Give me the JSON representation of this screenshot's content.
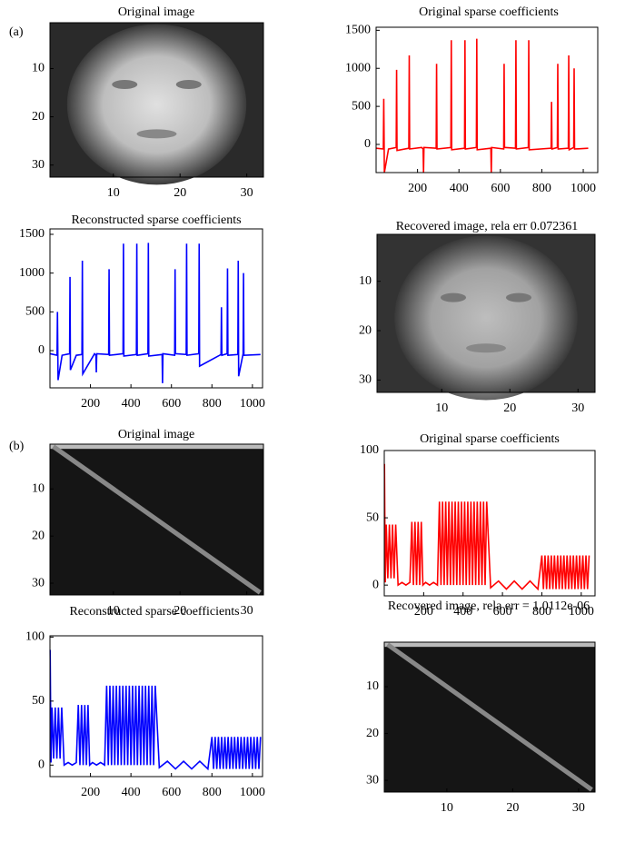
{
  "panel_labels": [
    "(a)",
    "(b)"
  ],
  "chart_data": [
    {
      "type": "image",
      "title": "Original image",
      "xlim": [
        0.5,
        32.5
      ],
      "ylim": [
        0.5,
        32.5
      ],
      "xticks": [
        10,
        20,
        30
      ],
      "yticks": [
        10,
        20,
        30
      ]
    },
    {
      "type": "line",
      "title": "Original sparse coefficients",
      "xlim": [
        0,
        1070
      ],
      "ylim": [
        -370,
        1540
      ],
      "xticks": [
        200,
        400,
        600,
        800,
        1000
      ],
      "yticks": [
        0,
        500,
        1000,
        1500
      ],
      "x": [
        1,
        35,
        37,
        40,
        60,
        97,
        99,
        101,
        158,
        160,
        162,
        220,
        227,
        229,
        231,
        290,
        292,
        294,
        361,
        363,
        365,
        427,
        429,
        431,
        484,
        486,
        488,
        554,
        556,
        558,
        616,
        618,
        620,
        673,
        675,
        677,
        735,
        737,
        739,
        845,
        847,
        849,
        875,
        877,
        879,
        928,
        930,
        932,
        954,
        956,
        958,
        1024
      ],
      "series": [
        {
          "color": "#ff0000",
          "values": [
            -50,
            -60,
            600,
            -370,
            -60,
            -40,
            980,
            -80,
            -50,
            1170,
            -60,
            -40,
            -60,
            -370,
            -40,
            -50,
            1060,
            -60,
            -40,
            1370,
            -70,
            -50,
            1370,
            -60,
            -40,
            1390,
            -70,
            -50,
            -370,
            -40,
            -60,
            1060,
            -40,
            -50,
            1370,
            -60,
            -40,
            1370,
            -70,
            -50,
            560,
            -60,
            -40,
            1060,
            -60,
            -50,
            1170,
            -70,
            -40,
            1000,
            -60,
            -50
          ]
        }
      ]
    },
    {
      "type": "line",
      "title": "Reconstructed sparse coefficients",
      "xlim": [
        0,
        1050
      ],
      "ylim": [
        -480,
        1570
      ],
      "xticks": [
        200,
        400,
        600,
        800,
        1000
      ],
      "yticks": [
        0,
        500,
        1000,
        1500
      ],
      "x": [
        1,
        35,
        37,
        40,
        60,
        97,
        99,
        101,
        130,
        158,
        160,
        162,
        220,
        227,
        229,
        231,
        290,
        292,
        294,
        361,
        363,
        365,
        427,
        429,
        431,
        484,
        486,
        488,
        554,
        556,
        558,
        616,
        618,
        620,
        673,
        675,
        677,
        735,
        737,
        739,
        845,
        847,
        849,
        875,
        877,
        879,
        928,
        930,
        932,
        954,
        956,
        958,
        1040
      ],
      "series": [
        {
          "color": "#0000ff",
          "values": [
            -40,
            -60,
            500,
            -380,
            -60,
            -40,
            950,
            -250,
            -60,
            -50,
            1160,
            -300,
            -40,
            -60,
            -280,
            -40,
            -50,
            1050,
            -60,
            -40,
            1380,
            -70,
            -50,
            1380,
            -60,
            -40,
            1390,
            -70,
            -50,
            -420,
            -40,
            -60,
            1050,
            -40,
            -50,
            1380,
            -60,
            -40,
            1380,
            -200,
            -50,
            560,
            -60,
            -40,
            1060,
            -60,
            -50,
            1160,
            -330,
            -40,
            1000,
            -60,
            -50
          ]
        }
      ]
    },
    {
      "type": "image",
      "title": "Recovered image, rela err 0.072361",
      "xlim": [
        0.5,
        32.5
      ],
      "ylim": [
        0.5,
        32.5
      ],
      "xticks": [
        10,
        20,
        30
      ],
      "yticks": [
        10,
        20,
        30
      ]
    },
    {
      "type": "image",
      "title": "Original image",
      "xlim": [
        0.5,
        32.5
      ],
      "ylim": [
        0.5,
        32.5
      ],
      "xticks": [
        10,
        20,
        30
      ],
      "yticks": [
        10,
        20,
        30
      ]
    },
    {
      "type": "line",
      "title": "Original sparse coefficients",
      "xlim": [
        0,
        1070
      ],
      "ylim": [
        -8,
        100
      ],
      "xticks": [
        200,
        400,
        600,
        800,
        1000
      ],
      "yticks": [
        0,
        50,
        100
      ],
      "x": [
        1,
        5,
        10,
        18,
        26,
        34,
        42,
        50,
        58,
        70,
        90,
        110,
        130,
        140,
        148,
        156,
        164,
        172,
        180,
        188,
        196,
        210,
        230,
        250,
        270,
        280,
        288,
        296,
        304,
        312,
        320,
        328,
        336,
        344,
        352,
        360,
        368,
        376,
        384,
        392,
        400,
        408,
        416,
        424,
        432,
        440,
        448,
        456,
        464,
        472,
        480,
        488,
        496,
        504,
        512,
        520,
        540,
        580,
        620,
        660,
        700,
        740,
        780,
        800,
        808,
        816,
        824,
        832,
        840,
        848,
        856,
        864,
        872,
        880,
        888,
        896,
        904,
        912,
        920,
        928,
        936,
        944,
        952,
        960,
        968,
        976,
        984,
        992,
        1000,
        1008,
        1016,
        1024,
        1032,
        1040
      ],
      "series": [
        {
          "color": "#ff0000",
          "values": [
            90,
            2,
            45,
            5,
            45,
            5,
            45,
            5,
            45,
            0,
            2,
            0,
            2,
            47,
            0,
            47,
            0,
            47,
            0,
            47,
            0,
            2,
            0,
            2,
            0,
            62,
            0,
            62,
            0,
            62,
            0,
            62,
            0,
            62,
            0,
            62,
            0,
            62,
            0,
            62,
            0,
            62,
            0,
            62,
            0,
            62,
            0,
            62,
            0,
            62,
            0,
            62,
            0,
            62,
            0,
            62,
            -2,
            3,
            -3,
            3,
            -3,
            3,
            -3,
            22,
            -3,
            22,
            -3,
            22,
            -3,
            22,
            -3,
            22,
            -3,
            22,
            -3,
            22,
            -3,
            22,
            -3,
            22,
            -3,
            22,
            -3,
            22,
            -3,
            22,
            -3,
            22,
            -3,
            22,
            -3,
            22,
            -3,
            22
          ]
        }
      ]
    },
    {
      "type": "line",
      "title": "Reconstructed sparse coefficients",
      "xlim": [
        0,
        1050
      ],
      "ylim": [
        -9,
        101
      ],
      "xticks": [
        200,
        400,
        600,
        800,
        1000
      ],
      "yticks": [
        0,
        50,
        100
      ],
      "x": [
        1,
        5,
        10,
        18,
        26,
        34,
        42,
        50,
        58,
        70,
        90,
        110,
        130,
        140,
        148,
        156,
        164,
        172,
        180,
        188,
        196,
        210,
        230,
        250,
        270,
        280,
        288,
        296,
        304,
        312,
        320,
        328,
        336,
        344,
        352,
        360,
        368,
        376,
        384,
        392,
        400,
        408,
        416,
        424,
        432,
        440,
        448,
        456,
        464,
        472,
        480,
        488,
        496,
        504,
        512,
        520,
        540,
        580,
        620,
        660,
        700,
        740,
        780,
        800,
        808,
        816,
        824,
        832,
        840,
        848,
        856,
        864,
        872,
        880,
        888,
        896,
        904,
        912,
        920,
        928,
        936,
        944,
        952,
        960,
        968,
        976,
        984,
        992,
        1000,
        1008,
        1016,
        1024,
        1032,
        1040
      ],
      "series": [
        {
          "color": "#0000ff",
          "values": [
            90,
            2,
            45,
            5,
            45,
            5,
            45,
            5,
            45,
            0,
            2,
            0,
            2,
            47,
            0,
            47,
            0,
            47,
            0,
            47,
            0,
            2,
            0,
            2,
            0,
            62,
            0,
            62,
            0,
            62,
            0,
            62,
            0,
            62,
            0,
            62,
            0,
            62,
            0,
            62,
            0,
            62,
            0,
            62,
            0,
            62,
            0,
            62,
            0,
            62,
            0,
            62,
            0,
            62,
            0,
            62,
            -2,
            3,
            -3,
            3,
            -3,
            3,
            -3,
            22,
            -3,
            22,
            -3,
            22,
            -3,
            22,
            -3,
            22,
            -3,
            22,
            -3,
            22,
            -3,
            22,
            -3,
            22,
            -3,
            22,
            -3,
            22,
            -3,
            22,
            -3,
            22,
            -3,
            22,
            -3,
            22,
            -3,
            22
          ]
        }
      ]
    },
    {
      "type": "image",
      "title": "Recovered image, rela err  = 1.0112e-06",
      "xlim": [
        0.5,
        32.5
      ],
      "ylim": [
        0.5,
        32.5
      ],
      "xticks": [
        10,
        20,
        30
      ],
      "yticks": [
        10,
        20,
        30
      ]
    }
  ]
}
